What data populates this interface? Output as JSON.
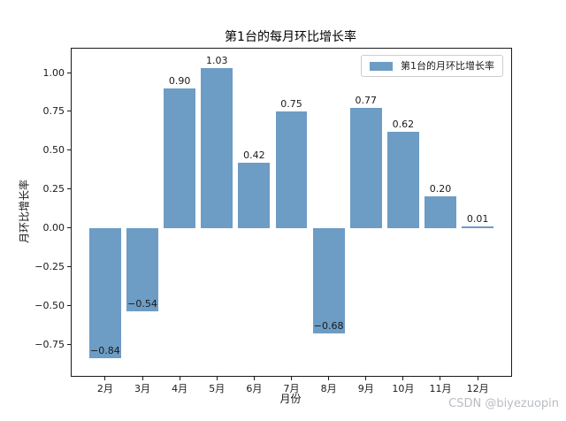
{
  "watermark": "CSDN @biyezuopin",
  "colors": {
    "bar": "#6D9CC5",
    "axis": "#1a1a1a",
    "legend_border": "#cccccc",
    "watermark_text": "#b9bcc2",
    "background": "#ffffff"
  },
  "chart_data": {
    "type": "bar",
    "title": "第1台的每月环比增长率",
    "xlabel": "月份",
    "ylabel": "月环比增长率",
    "legend_entries": [
      "第1台的月环比增长率"
    ],
    "legend_position": "upper right",
    "categories": [
      "2月",
      "3月",
      "4月",
      "5月",
      "6月",
      "7月",
      "8月",
      "9月",
      "10月",
      "11月",
      "12月"
    ],
    "values": [
      -0.84,
      -0.54,
      0.9,
      1.03,
      0.42,
      0.75,
      -0.68,
      0.77,
      0.62,
      0.2,
      0.01
    ],
    "value_labels": [
      "−0.84",
      "−0.54",
      "0.90",
      "1.03",
      "0.42",
      "0.75",
      "−0.68",
      "0.77",
      "0.62",
      "0.20",
      "0.01"
    ],
    "yticks": [
      1.0,
      0.75,
      0.5,
      0.25,
      0.0,
      -0.25,
      -0.5,
      -0.75
    ],
    "ytick_labels": [
      "1.00",
      "0.75",
      "0.50",
      "0.25",
      "0.00",
      "−0.25",
      "−0.50",
      "−0.75"
    ],
    "ylim": [
      -0.954,
      1.154
    ],
    "grid": false
  }
}
